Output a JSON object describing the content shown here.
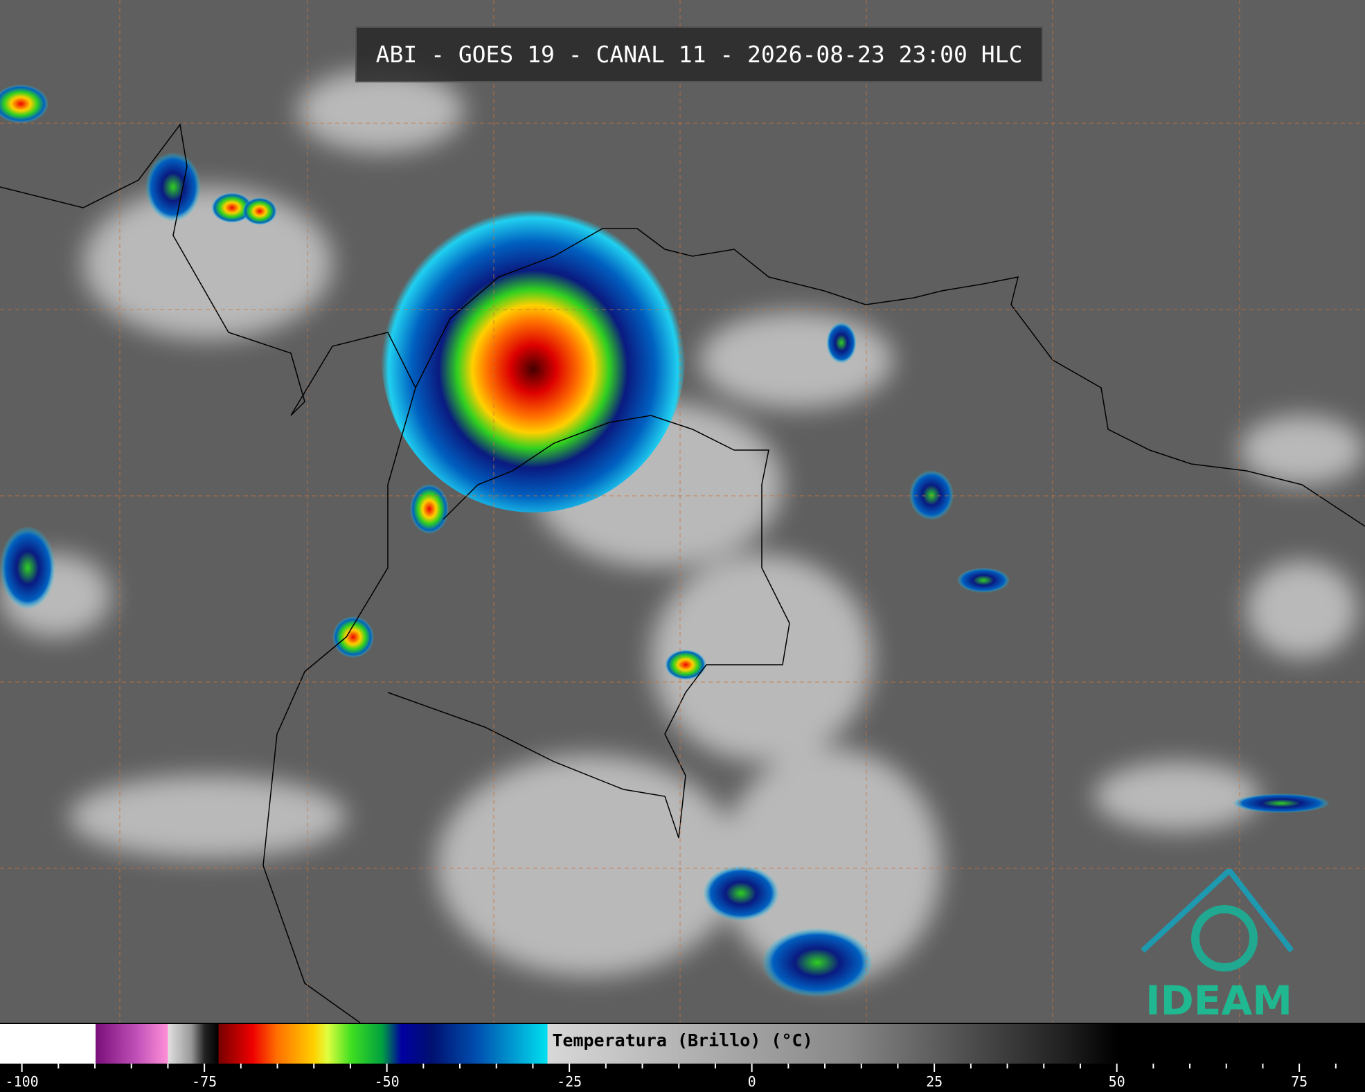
{
  "header": {
    "title": "ABI - GOES 19 - CANAL 11 - 2026-08-23 23:00 HLC"
  },
  "colorbar": {
    "label": "Temperatura (Brillo) (°C)",
    "lim": [
      -103,
      84
    ],
    "ticks": [
      -100,
      -75,
      -50,
      -25,
      0,
      25,
      50,
      75
    ],
    "minor_ticks": [
      -95,
      -90,
      -85,
      -80,
      -70,
      -65,
      -60,
      -55,
      -45,
      -40,
      -35,
      -30,
      -20,
      -15,
      -10,
      -5,
      5,
      10,
      15,
      20,
      30,
      35,
      40,
      45,
      55,
      60,
      65,
      70,
      80
    ]
  },
  "logo": {
    "text": "IDEAM"
  }
}
